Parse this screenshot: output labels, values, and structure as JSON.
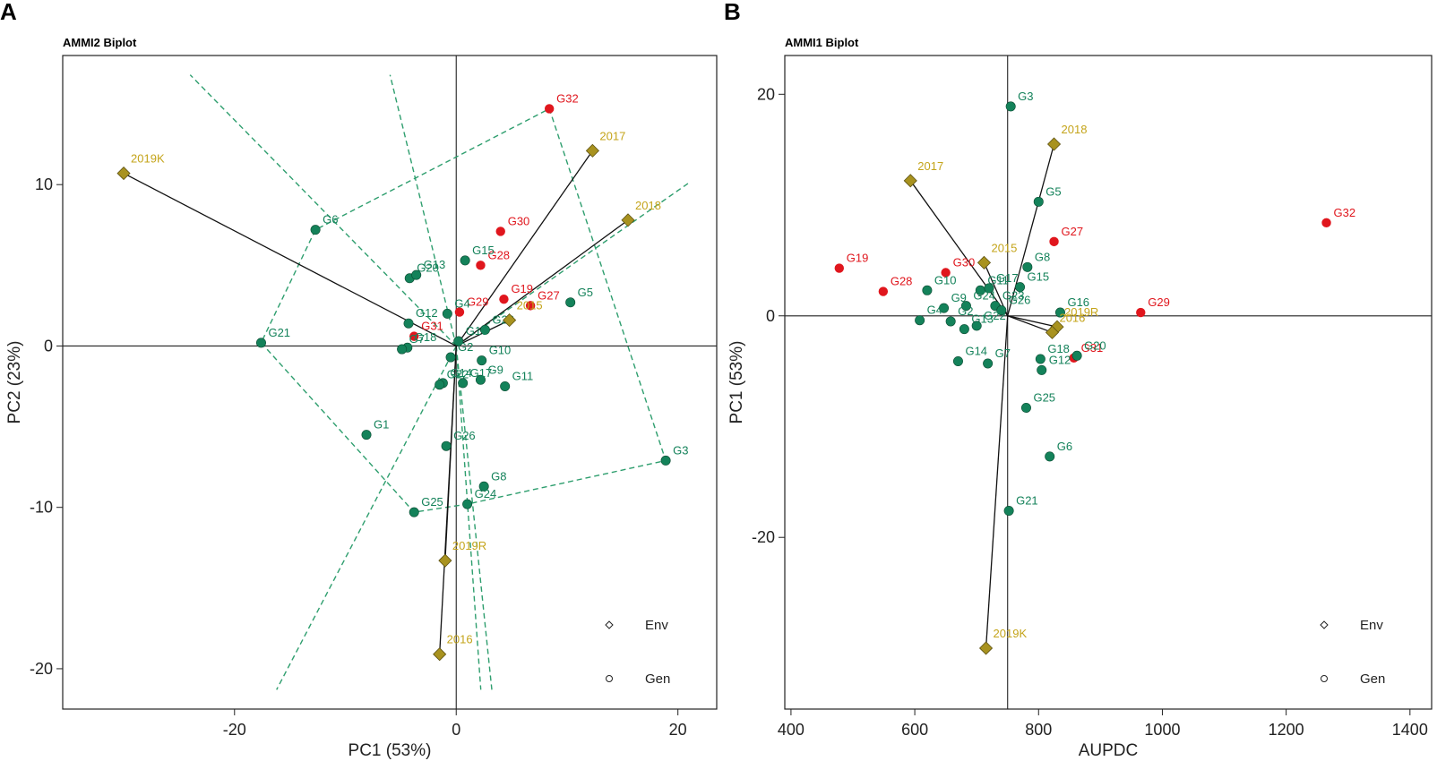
{
  "figure": {
    "panel_a_letter": "A",
    "panel_b_letter": "B"
  },
  "colors": {
    "gen_normal": "#14825a",
    "gen_highlight": "#e0161d",
    "env": "#a8921f",
    "env_label": "#c4a41a",
    "hull": "#2e9e6e"
  },
  "chart_data": [
    {
      "type": "scatter",
      "title": "AMMI2 Biplot",
      "xlabel": "PC1 (53%)",
      "ylabel": "PC2 (23%)",
      "xlim": [
        -35.5,
        23.5
      ],
      "ylim": [
        -22.5,
        18
      ],
      "xticks": [
        -20,
        0,
        20
      ],
      "yticks": [
        -20,
        -10,
        0,
        10
      ],
      "xtick_labels": [
        "-20",
        "0",
        "20"
      ],
      "ytick_labels": [
        "-20",
        "-10",
        "0",
        "10"
      ],
      "reference_lines": {
        "x": 0,
        "y": 0
      },
      "legend": {
        "position": "bottom-right",
        "items": [
          "Env",
          "Gen"
        ]
      },
      "environments": [
        {
          "name": "2019K",
          "x": -30,
          "y": 10.7
        },
        {
          "name": "2017",
          "x": 12.3,
          "y": 12.1
        },
        {
          "name": "2018",
          "x": 15.5,
          "y": 7.8
        },
        {
          "name": "2015",
          "x": 4.8,
          "y": 1.6
        },
        {
          "name": "2019R",
          "x": -1.0,
          "y": -13.3
        },
        {
          "name": "2016",
          "x": -1.5,
          "y": -19.1
        }
      ],
      "genotypes": [
        {
          "name": "G32",
          "x": 8.4,
          "y": 14.7,
          "highlight": true
        },
        {
          "name": "G30",
          "x": 4.0,
          "y": 7.1,
          "highlight": true
        },
        {
          "name": "G28",
          "x": 2.2,
          "y": 5.0,
          "highlight": true
        },
        {
          "name": "G29",
          "x": 0.3,
          "y": 2.1,
          "highlight": true
        },
        {
          "name": "G19",
          "x": 4.3,
          "y": 2.9,
          "highlight": true
        },
        {
          "name": "G27",
          "x": 6.7,
          "y": 2.5,
          "highlight": true
        },
        {
          "name": "G31",
          "x": -3.8,
          "y": 0.6,
          "highlight": true
        },
        {
          "name": "G6",
          "x": -12.7,
          "y": 7.2,
          "highlight": false
        },
        {
          "name": "G20",
          "x": -4.2,
          "y": 4.2,
          "highlight": false
        },
        {
          "name": "G13",
          "x": -3.6,
          "y": 4.4,
          "highlight": false
        },
        {
          "name": "G15",
          "x": 0.8,
          "y": 5.3,
          "highlight": false
        },
        {
          "name": "G4",
          "x": -0.8,
          "y": 2.0,
          "highlight": false
        },
        {
          "name": "G12",
          "x": -4.3,
          "y": 1.4,
          "highlight": false
        },
        {
          "name": "G23",
          "x": 2.6,
          "y": 1.0,
          "highlight": false
        },
        {
          "name": "G5",
          "x": 10.3,
          "y": 2.7,
          "highlight": false
        },
        {
          "name": "G16",
          "x": 0.2,
          "y": 0.3,
          "highlight": false
        },
        {
          "name": "G21",
          "x": -17.6,
          "y": 0.2,
          "highlight": false
        },
        {
          "name": "G18",
          "x": -4.4,
          "y": -0.1,
          "highlight": false
        },
        {
          "name": "G7",
          "x": -4.9,
          "y": -0.2,
          "highlight": false
        },
        {
          "name": "G2",
          "x": -0.5,
          "y": -0.7,
          "highlight": false
        },
        {
          "name": "G10",
          "x": 2.3,
          "y": -0.9,
          "highlight": false
        },
        {
          "name": "G14",
          "x": -1.2,
          "y": -2.3,
          "highlight": false
        },
        {
          "name": "G22",
          "x": -1.5,
          "y": -2.4,
          "highlight": false
        },
        {
          "name": "G9",
          "x": 2.2,
          "y": -2.1,
          "highlight": false
        },
        {
          "name": "G11",
          "x": 4.4,
          "y": -2.5,
          "highlight": false
        },
        {
          "name": "G17",
          "x": 0.6,
          "y": -2.3,
          "highlight": false
        },
        {
          "name": "G1",
          "x": -8.1,
          "y": -5.5,
          "highlight": false
        },
        {
          "name": "G26",
          "x": -0.9,
          "y": -6.2,
          "highlight": false
        },
        {
          "name": "G8",
          "x": 2.5,
          "y": -8.7,
          "highlight": false
        },
        {
          "name": "G3",
          "x": 18.9,
          "y": -7.1,
          "highlight": false
        },
        {
          "name": "G25",
          "x": -3.8,
          "y": -10.3,
          "highlight": false
        },
        {
          "name": "G24",
          "x": 1.0,
          "y": -9.8,
          "highlight": false
        }
      ]
    },
    {
      "type": "scatter",
      "title": "AMMI1 Biplot",
      "xlabel": "AUPDC",
      "ylabel": "PC1 (53%)",
      "xlim": [
        390,
        1435
      ],
      "ylim": [
        -35.5,
        23.5
      ],
      "xticks": [
        400,
        600,
        800,
        1000,
        1200,
        1400
      ],
      "yticks": [
        -20,
        0,
        20
      ],
      "xtick_labels": [
        "400",
        "600",
        "800",
        "1000",
        "1200",
        "1400"
      ],
      "ytick_labels": [
        "-20",
        "0",
        "20"
      ],
      "reference_lines": {
        "x": 750,
        "y": 0
      },
      "legend": {
        "position": "bottom-right",
        "items": [
          "Env",
          "Gen"
        ]
      },
      "environments": [
        {
          "name": "2018",
          "x": 825,
          "y": 15.5
        },
        {
          "name": "2017",
          "x": 593,
          "y": 12.2
        },
        {
          "name": "2015",
          "x": 712,
          "y": 4.8
        },
        {
          "name": "2019R",
          "x": 830,
          "y": -1.0
        },
        {
          "name": "2016",
          "x": 822,
          "y": -1.5
        },
        {
          "name": "2019K",
          "x": 715,
          "y": -30.0
        }
      ],
      "genotypes": [
        {
          "name": "G32",
          "x": 1265,
          "y": 8.4,
          "highlight": true
        },
        {
          "name": "G27",
          "x": 825,
          "y": 6.7,
          "highlight": true
        },
        {
          "name": "G19",
          "x": 478,
          "y": 4.3,
          "highlight": true
        },
        {
          "name": "G30",
          "x": 650,
          "y": 3.9,
          "highlight": true
        },
        {
          "name": "G28",
          "x": 549,
          "y": 2.2,
          "highlight": true
        },
        {
          "name": "G29",
          "x": 965,
          "y": 0.3,
          "highlight": true
        },
        {
          "name": "G31",
          "x": 857,
          "y": -3.8,
          "highlight": true
        },
        {
          "name": "G3",
          "x": 755,
          "y": 18.9,
          "highlight": false
        },
        {
          "name": "G5",
          "x": 800,
          "y": 10.3,
          "highlight": false
        },
        {
          "name": "G8",
          "x": 782,
          "y": 4.4,
          "highlight": false
        },
        {
          "name": "G11",
          "x": 706,
          "y": 2.3,
          "highlight": false
        },
        {
          "name": "G17",
          "x": 720,
          "y": 2.5,
          "highlight": false
        },
        {
          "name": "G15",
          "x": 770,
          "y": 2.6,
          "highlight": false
        },
        {
          "name": "G10",
          "x": 620,
          "y": 2.3,
          "highlight": false
        },
        {
          "name": "G23",
          "x": 730,
          "y": 0.9,
          "highlight": false
        },
        {
          "name": "G16",
          "x": 835,
          "y": 0.3,
          "highlight": false
        },
        {
          "name": "G26",
          "x": 740,
          "y": 0.5,
          "highlight": false
        },
        {
          "name": "G9",
          "x": 647,
          "y": 0.7,
          "highlight": false
        },
        {
          "name": "G24",
          "x": 683,
          "y": 0.9,
          "highlight": false
        },
        {
          "name": "G4",
          "x": 608,
          "y": -0.4,
          "highlight": false
        },
        {
          "name": "G2",
          "x": 658,
          "y": -0.5,
          "highlight": false
        },
        {
          "name": "G13",
          "x": 680,
          "y": -1.2,
          "highlight": false
        },
        {
          "name": "G22",
          "x": 700,
          "y": -0.9,
          "highlight": false
        },
        {
          "name": "G14",
          "x": 670,
          "y": -4.1,
          "highlight": false
        },
        {
          "name": "G7",
          "x": 718,
          "y": -4.3,
          "highlight": false
        },
        {
          "name": "G20",
          "x": 862,
          "y": -3.6,
          "highlight": false
        },
        {
          "name": "G18",
          "x": 803,
          "y": -3.9,
          "highlight": false
        },
        {
          "name": "G12",
          "x": 805,
          "y": -4.9,
          "highlight": false
        },
        {
          "name": "G25",
          "x": 780,
          "y": -8.3,
          "highlight": false
        },
        {
          "name": "G6",
          "x": 818,
          "y": -12.7,
          "highlight": false
        },
        {
          "name": "G21",
          "x": 752,
          "y": -17.6,
          "highlight": false
        }
      ]
    }
  ]
}
